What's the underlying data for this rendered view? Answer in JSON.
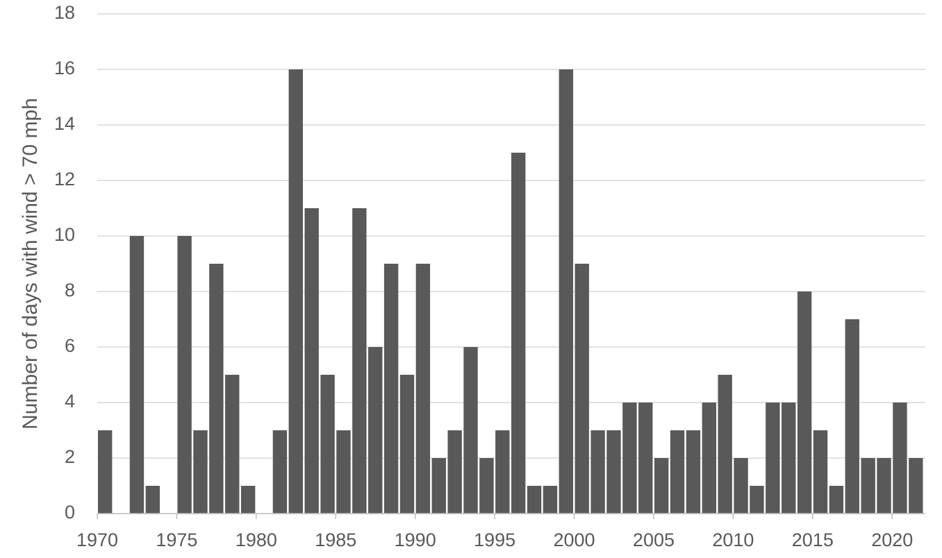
{
  "chart_data": {
    "type": "bar",
    "y_label": "Number of days with wind > 70 mph",
    "x": [
      1970,
      1971,
      1972,
      1973,
      1974,
      1975,
      1976,
      1977,
      1978,
      1979,
      1980,
      1981,
      1982,
      1983,
      1984,
      1985,
      1986,
      1987,
      1988,
      1989,
      1990,
      1991,
      1992,
      1993,
      1994,
      1995,
      1996,
      1997,
      1998,
      1999,
      2000,
      2001,
      2002,
      2003,
      2004,
      2005,
      2006,
      2007,
      2008,
      2009,
      2010,
      2011,
      2012,
      2013,
      2014,
      2015,
      2016,
      2017,
      2018,
      2019,
      2020,
      2021
    ],
    "values": [
      3,
      0,
      10,
      1,
      0,
      10,
      3,
      9,
      5,
      1,
      0,
      3,
      16,
      11,
      5,
      3,
      11,
      6,
      9,
      5,
      9,
      2,
      3,
      6,
      2,
      3,
      13,
      1,
      1,
      16,
      9,
      3,
      3,
      4,
      4,
      2,
      3,
      3,
      4,
      5,
      2,
      1,
      4,
      4,
      8,
      3,
      1,
      7,
      2,
      2,
      4,
      2
    ],
    "color": "#595959",
    "xlim": [
      1970,
      2022
    ],
    "xticks": [
      1970,
      1975,
      1980,
      1985,
      1990,
      1995,
      2000,
      2005,
      2010,
      2015,
      2020
    ],
    "ylim": [
      0,
      18
    ],
    "yticks": [
      0,
      2,
      4,
      6,
      8,
      10,
      12,
      14,
      16,
      18
    ],
    "grid": true
  }
}
